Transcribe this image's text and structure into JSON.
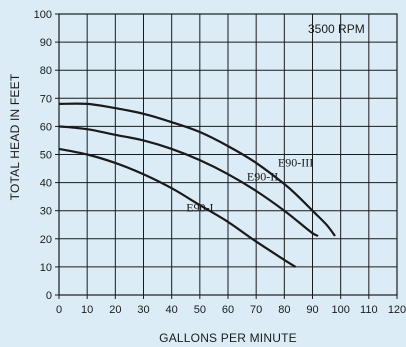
{
  "chart_data": {
    "type": "line",
    "title": "",
    "annotation": "3500 RPM",
    "xlabel": "GALLONS PER MINUTE",
    "ylabel": "TOTAL HEAD IN FEET",
    "xlim": [
      0,
      120
    ],
    "ylim": [
      0,
      100
    ],
    "x_ticks": [
      0,
      10,
      20,
      30,
      40,
      50,
      60,
      70,
      80,
      90,
      100,
      110,
      120
    ],
    "y_ticks": [
      0,
      10,
      20,
      30,
      40,
      50,
      60,
      70,
      80,
      90,
      100
    ],
    "grid": true,
    "background": "#dcecf7",
    "line_color": "#1a1a1a",
    "series": [
      {
        "name": "E90-I",
        "x": [
          0,
          10,
          20,
          30,
          40,
          50,
          60,
          70,
          80,
          84
        ],
        "y": [
          52,
          50,
          47,
          43,
          38,
          32,
          26,
          19,
          12.5,
          10
        ]
      },
      {
        "name": "E90-II",
        "x": [
          0,
          10,
          20,
          30,
          40,
          50,
          60,
          70,
          80,
          85,
          90,
          92
        ],
        "y": [
          60,
          59,
          57,
          55,
          52,
          48,
          43,
          37,
          30,
          26,
          22,
          21
        ]
      },
      {
        "name": "E90-III",
        "x": [
          0,
          10,
          20,
          30,
          40,
          50,
          60,
          70,
          80,
          85,
          90,
          95,
          98
        ],
        "y": [
          68,
          68,
          66.5,
          64.5,
          61.5,
          58,
          53,
          47,
          39.5,
          35,
          30,
          25,
          21
        ]
      }
    ]
  }
}
